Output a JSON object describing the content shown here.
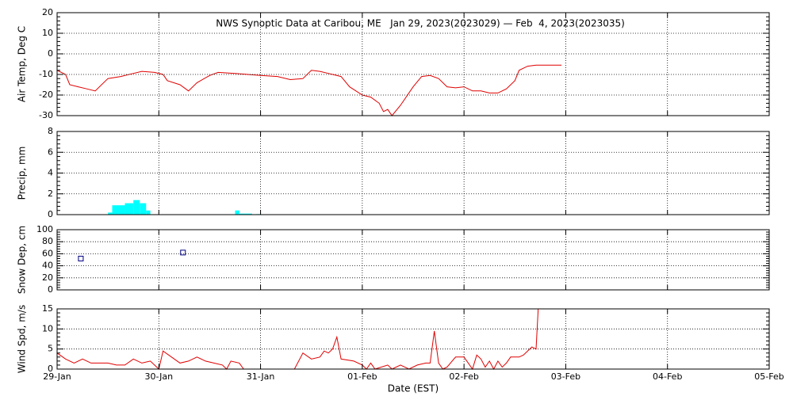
{
  "chart_data": [
    {
      "type": "line",
      "title": "NWS Synoptic Data at Caribou, ME   Jan 29, 2023(2023029) — Feb  4, 2023(2023035)",
      "ylabel": "Air Temp, Deg C",
      "color": "#e00000",
      "x": [
        0,
        2,
        3,
        5,
        7,
        9,
        12,
        15,
        18,
        20,
        23,
        25,
        26,
        29,
        31,
        33,
        36,
        38,
        42,
        45,
        48,
        52,
        55,
        58,
        60,
        62,
        64,
        67,
        69,
        72,
        74,
        76,
        77,
        78,
        79,
        81,
        84,
        86,
        88,
        90,
        92,
        94,
        96,
        98,
        100,
        102,
        104,
        106,
        108,
        109,
        111,
        113,
        119
      ],
      "values": [
        -8,
        -10,
        -15,
        -16,
        -17,
        -18,
        -12,
        -11,
        -9.5,
        -8.5,
        -9,
        -10,
        -13,
        -15,
        -18,
        -14,
        -10.5,
        -9,
        -9.5,
        -10,
        -10.5,
        -11,
        -12.5,
        -12,
        -8,
        -8.5,
        -9.5,
        -11,
        -16,
        -20,
        -21,
        -24,
        -28,
        -27,
        -30,
        -25,
        -16,
        -11,
        -10.5,
        -12,
        -16,
        -16.5,
        -16,
        -18,
        -18,
        -19,
        -19,
        -17,
        -13,
        -8,
        -6,
        -5.5,
        -5.5
      ],
      "xlim": [
        0,
        168
      ],
      "xticks": [
        0,
        24,
        48,
        72,
        96,
        120,
        144,
        168
      ],
      "ylim": [
        -30,
        20
      ],
      "yticks": [
        -30,
        -20,
        -10,
        0,
        10,
        20
      ],
      "grid": true
    },
    {
      "type": "histogram",
      "ylabel": "Precip, mm",
      "color": "#00ffff",
      "bins": [
        12,
        13,
        16,
        18,
        19.5,
        21,
        22,
        42,
        43,
        46,
        47,
        48
      ],
      "values": [
        0.2,
        0.9,
        1.1,
        1.4,
        1.1,
        0.4,
        0,
        0.4,
        0.1,
        0,
        0.05
      ],
      "xlim": [
        0,
        168
      ],
      "xticks": [
        0,
        24,
        48,
        72,
        96,
        120,
        144,
        168
      ],
      "ylim": [
        0,
        8
      ],
      "yticks": [
        0,
        2,
        4,
        6,
        8
      ],
      "grid": true
    },
    {
      "type": "scatter",
      "ylabel": "Snow Dep, cm",
      "color": "#000080",
      "x": [
        5.6,
        29.7
      ],
      "values": [
        52,
        62
      ],
      "xlim": [
        0,
        168
      ],
      "xticks": [
        0,
        24,
        48,
        72,
        96,
        120,
        144,
        168
      ],
      "ylim": [
        0,
        100
      ],
      "yticks": [
        0,
        20,
        40,
        60,
        80,
        100
      ],
      "grid": true
    },
    {
      "type": "line",
      "ylabel": "Wind Spd, m/s",
      "xlabel": "Date (EST)",
      "color": "#e00000",
      "x": [
        0,
        2,
        4,
        6,
        8,
        12,
        14,
        16,
        18,
        20,
        22,
        24,
        25,
        27,
        29,
        31,
        33,
        35,
        37,
        39,
        40,
        41,
        43,
        44,
        56,
        58,
        60,
        62,
        63,
        64,
        65,
        66,
        67,
        70,
        72,
        73,
        74,
        75,
        78,
        79,
        81,
        83,
        85,
        87,
        88,
        89,
        90,
        91,
        92,
        94,
        96,
        97,
        98,
        99,
        100,
        101,
        102,
        103,
        104,
        105,
        106,
        107,
        109,
        110,
        112,
        113,
        113.5
      ],
      "values": [
        4,
        2.5,
        1.5,
        2.5,
        1.5,
        1.5,
        1,
        1,
        2.5,
        1.5,
        2,
        0,
        4.5,
        3,
        1.5,
        2,
        3,
        2,
        1.5,
        1,
        0,
        2,
        1.5,
        0,
        0,
        4,
        2.5,
        3,
        4.5,
        4,
        5,
        8,
        2.5,
        2,
        1,
        0,
        1.5,
        0,
        1,
        0,
        1,
        0,
        1,
        1.5,
        1.5,
        9.5,
        1.5,
        0,
        0.5,
        3,
        3,
        1.5,
        0,
        3.5,
        2.5,
        0.5,
        2,
        0,
        2,
        0.5,
        1.5,
        3,
        3,
        3.5,
        5.5,
        5,
        15
      ],
      "xlim": [
        0,
        168
      ],
      "xticks": [
        {
          "value": 0,
          "label": "29-Jan"
        },
        {
          "value": 24,
          "label": "30-Jan"
        },
        {
          "value": 48,
          "label": "31-Jan"
        },
        {
          "value": 72,
          "label": "01-Feb"
        },
        {
          "value": 96,
          "label": "02-Feb"
        },
        {
          "value": 120,
          "label": "03-Feb"
        },
        {
          "value": 144,
          "label": "04-Feb"
        },
        {
          "value": 168,
          "label": "05-Feb"
        }
      ],
      "ylim": [
        0,
        15
      ],
      "yticks": [
        0,
        5,
        10,
        15
      ],
      "grid": true
    }
  ]
}
